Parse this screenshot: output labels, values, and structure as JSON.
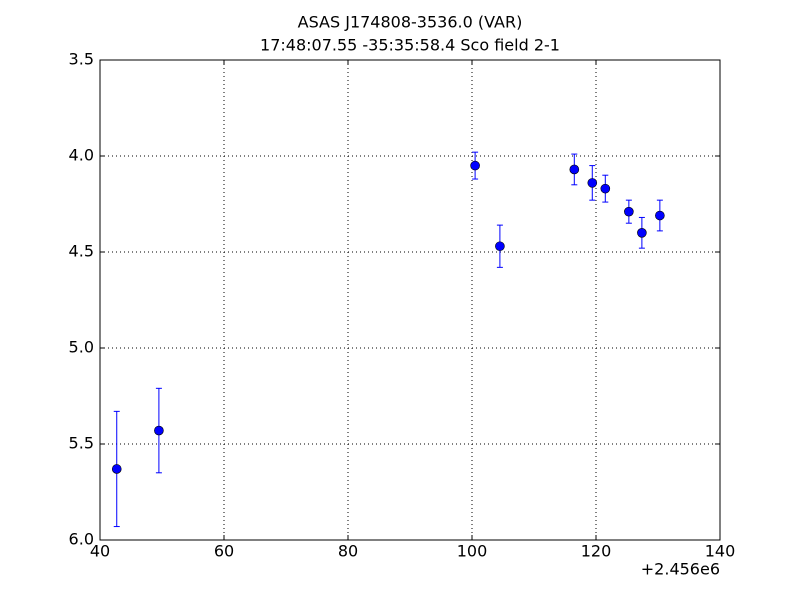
{
  "chart_data": {
    "type": "errorbar",
    "title": "ASAS J174808-3536.0  (VAR)",
    "subtitle": "17:48:07.55 -35:35:58.4 Sco field 2-1",
    "x_offset_label": "+2.456e6",
    "series": [
      {
        "color": "#0000ff",
        "x": [
          42.7,
          49.5,
          100.5,
          104.5,
          116.5,
          119.4,
          121.5,
          125.3,
          127.4,
          130.3
        ],
        "values": [
          5.63,
          5.43,
          4.05,
          4.47,
          4.07,
          4.14,
          4.17,
          4.29,
          4.4,
          4.31
        ],
        "errors": [
          0.3,
          0.22,
          0.07,
          0.11,
          0.08,
          0.09,
          0.07,
          0.06,
          0.08,
          0.08
        ]
      }
    ],
    "xlim": [
      40,
      140
    ],
    "xticks": [
      40,
      60,
      80,
      100,
      120,
      140
    ],
    "ylim": [
      6.0,
      3.5
    ],
    "yticks": [
      {
        "value": 3.5,
        "label": "3.5"
      },
      {
        "value": 4.0,
        "label": "4.0"
      },
      {
        "value": 4.5,
        "label": "4.5"
      },
      {
        "value": 5.0,
        "label": "5.0"
      },
      {
        "value": 5.5,
        "label": "5.5"
      },
      {
        "value": 6.0,
        "label": "6.0"
      }
    ],
    "grid": true
  }
}
